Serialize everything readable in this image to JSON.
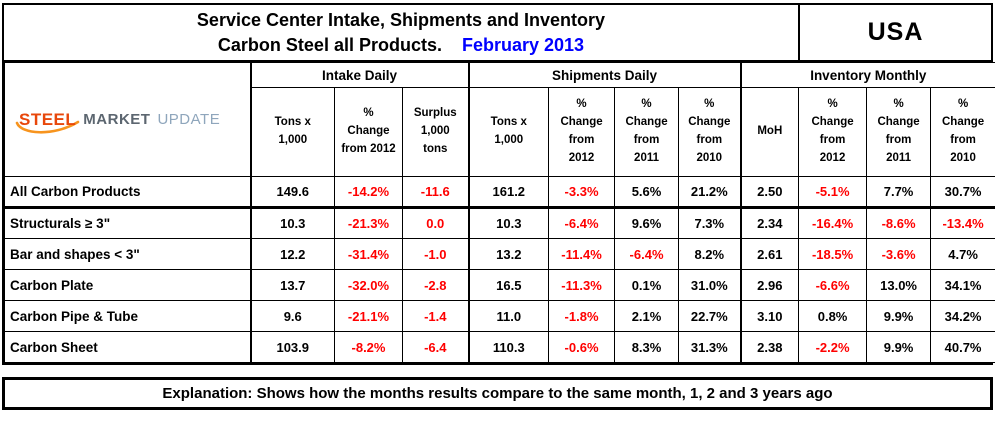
{
  "header": {
    "title_line1": "Service Center Intake, Shipments and Inventory",
    "title_line2": "Carbon Steel all Products.",
    "title_date": "February 2013",
    "region": "USA"
  },
  "logo": {
    "steel": "STEEL",
    "market": "MARKET",
    "update": "UPDATE",
    "swoosh_icon": "orange-swoosh"
  },
  "table": {
    "groups": [
      "Intake Daily",
      "Shipments Daily",
      "Inventory Monthly"
    ],
    "columns": [
      "Tons x\n1,000",
      "%\nChange\nfrom 2012",
      "Surplus\n1,000\ntons",
      "Tons x\n1,000",
      "%\nChange\nfrom\n2012",
      "%\nChange\nfrom\n2011",
      "%\nChange\nfrom\n2010",
      "MoH",
      "%\nChange\nfrom\n2012",
      "%\nChange\nfrom\n2011",
      "%\nChange\nfrom\n2010"
    ],
    "rows": [
      {
        "label": "All Carbon Products",
        "thick_bottom": true,
        "cells": [
          [
            "149.6",
            0
          ],
          [
            "-14.2%",
            1
          ],
          [
            "-11.6",
            1
          ],
          [
            "161.2",
            0
          ],
          [
            "-3.3%",
            1
          ],
          [
            "5.6%",
            0
          ],
          [
            "21.2%",
            0
          ],
          [
            "2.50",
            0
          ],
          [
            "-5.1%",
            1
          ],
          [
            "7.7%",
            0
          ],
          [
            "30.7%",
            0
          ]
        ]
      },
      {
        "label": "Structurals ≥ 3\"",
        "thick_bottom": false,
        "cells": [
          [
            "10.3",
            0
          ],
          [
            "-21.3%",
            1
          ],
          [
            "0.0",
            1
          ],
          [
            "10.3",
            0
          ],
          [
            "-6.4%",
            1
          ],
          [
            "9.6%",
            0
          ],
          [
            "7.3%",
            0
          ],
          [
            "2.34",
            0
          ],
          [
            "-16.4%",
            1
          ],
          [
            "-8.6%",
            1
          ],
          [
            "-13.4%",
            1
          ]
        ]
      },
      {
        "label": "Bar and shapes < 3\"",
        "thick_bottom": false,
        "cells": [
          [
            "12.2",
            0
          ],
          [
            "-31.4%",
            1
          ],
          [
            "-1.0",
            1
          ],
          [
            "13.2",
            0
          ],
          [
            "-11.4%",
            1
          ],
          [
            "-6.4%",
            1
          ],
          [
            "8.2%",
            0
          ],
          [
            "2.61",
            0
          ],
          [
            "-18.5%",
            1
          ],
          [
            "-3.6%",
            1
          ],
          [
            "4.7%",
            0
          ]
        ]
      },
      {
        "label": "Carbon Plate",
        "thick_bottom": false,
        "cells": [
          [
            "13.7",
            0
          ],
          [
            "-32.0%",
            1
          ],
          [
            "-2.8",
            1
          ],
          [
            "16.5",
            0
          ],
          [
            "-11.3%",
            1
          ],
          [
            "0.1%",
            0
          ],
          [
            "31.0%",
            0
          ],
          [
            "2.96",
            0
          ],
          [
            "-6.6%",
            1
          ],
          [
            "13.0%",
            0
          ],
          [
            "34.1%",
            0
          ]
        ]
      },
      {
        "label": "Carbon Pipe & Tube",
        "thick_bottom": false,
        "cells": [
          [
            "9.6",
            0
          ],
          [
            "-21.1%",
            1
          ],
          [
            "-1.4",
            1
          ],
          [
            "11.0",
            0
          ],
          [
            "-1.8%",
            1
          ],
          [
            "2.1%",
            0
          ],
          [
            "22.7%",
            0
          ],
          [
            "3.10",
            0
          ],
          [
            "0.8%",
            0
          ],
          [
            "9.9%",
            0
          ],
          [
            "34.2%",
            0
          ]
        ]
      },
      {
        "label": "Carbon Sheet",
        "thick_bottom": false,
        "cells": [
          [
            "103.9",
            0
          ],
          [
            "-8.2%",
            1
          ],
          [
            "-6.4",
            1
          ],
          [
            "110.3",
            0
          ],
          [
            "-0.6%",
            1
          ],
          [
            "8.3%",
            0
          ],
          [
            "31.3%",
            0
          ],
          [
            "2.38",
            0
          ],
          [
            "-2.2%",
            1
          ],
          [
            "9.9%",
            0
          ],
          [
            "40.7%",
            0
          ]
        ]
      }
    ]
  },
  "footer": {
    "text": "Explanation: Shows how the months results compare to the same month, 1, 2 and 3 years ago"
  },
  "colors": {
    "negative": "#FF0000",
    "title_date_blue": "#0000FF",
    "logo_steel": "#E8470B",
    "logo_market": "#5C6670",
    "logo_update": "#8FA6BC",
    "logo_swoosh": "#F7941E"
  },
  "chart_data": {
    "type": "table",
    "title": "Service Center Intake, Shipments and Inventory - Carbon Steel all Products. February 2013",
    "region": "USA",
    "column_groups": [
      {
        "name": "Intake Daily",
        "columns": [
          "Tons x 1,000",
          "% Change from 2012",
          "Surplus 1,000 tons"
        ]
      },
      {
        "name": "Shipments Daily",
        "columns": [
          "Tons x 1,000",
          "% Change from 2012",
          "% Change from 2011",
          "% Change from 2010"
        ]
      },
      {
        "name": "Inventory Monthly",
        "columns": [
          "MoH",
          "% Change from 2012",
          "% Change from 2011",
          "% Change from 2010"
        ]
      }
    ],
    "rows": [
      {
        "product": "All Carbon Products",
        "intake": {
          "tons_x_1000": 149.6,
          "pct_change_from_2012": -14.2,
          "surplus_1000_tons": -11.6
        },
        "shipments": {
          "tons_x_1000": 161.2,
          "pct_change_from_2012": -3.3,
          "pct_change_from_2011": 5.6,
          "pct_change_from_2010": 21.2
        },
        "inventory": {
          "moh": 2.5,
          "pct_change_from_2012": -5.1,
          "pct_change_from_2011": 7.7,
          "pct_change_from_2010": 30.7
        }
      },
      {
        "product": "Structurals ≥ 3\"",
        "intake": {
          "tons_x_1000": 10.3,
          "pct_change_from_2012": -21.3,
          "surplus_1000_tons": 0.0
        },
        "shipments": {
          "tons_x_1000": 10.3,
          "pct_change_from_2012": -6.4,
          "pct_change_from_2011": 9.6,
          "pct_change_from_2010": 7.3
        },
        "inventory": {
          "moh": 2.34,
          "pct_change_from_2012": -16.4,
          "pct_change_from_2011": -8.6,
          "pct_change_from_2010": -13.4
        }
      },
      {
        "product": "Bar and shapes < 3\"",
        "intake": {
          "tons_x_1000": 12.2,
          "pct_change_from_2012": -31.4,
          "surplus_1000_tons": -1.0
        },
        "shipments": {
          "tons_x_1000": 13.2,
          "pct_change_from_2012": -11.4,
          "pct_change_from_2011": -6.4,
          "pct_change_from_2010": 8.2
        },
        "inventory": {
          "moh": 2.61,
          "pct_change_from_2012": -18.5,
          "pct_change_from_2011": -3.6,
          "pct_change_from_2010": 4.7
        }
      },
      {
        "product": "Carbon Plate",
        "intake": {
          "tons_x_1000": 13.7,
          "pct_change_from_2012": -32.0,
          "surplus_1000_tons": -2.8
        },
        "shipments": {
          "tons_x_1000": 16.5,
          "pct_change_from_2012": -11.3,
          "pct_change_from_2011": 0.1,
          "pct_change_from_2010": 31.0
        },
        "inventory": {
          "moh": 2.96,
          "pct_change_from_2012": -6.6,
          "pct_change_from_2011": 13.0,
          "pct_change_from_2010": 34.1
        }
      },
      {
        "product": "Carbon Pipe & Tube",
        "intake": {
          "tons_x_1000": 9.6,
          "pct_change_from_2012": -21.1,
          "surplus_1000_tons": -1.4
        },
        "shipments": {
          "tons_x_1000": 11.0,
          "pct_change_from_2012": -1.8,
          "pct_change_from_2011": 2.1,
          "pct_change_from_2010": 22.7
        },
        "inventory": {
          "moh": 3.1,
          "pct_change_from_2012": 0.8,
          "pct_change_from_2011": 9.9,
          "pct_change_from_2010": 34.2
        }
      },
      {
        "product": "Carbon Sheet",
        "intake": {
          "tons_x_1000": 103.9,
          "pct_change_from_2012": -8.2,
          "surplus_1000_tons": -6.4
        },
        "shipments": {
          "tons_x_1000": 110.3,
          "pct_change_from_2012": -0.6,
          "pct_change_from_2011": 8.3,
          "pct_change_from_2010": 31.3
        },
        "inventory": {
          "moh": 2.38,
          "pct_change_from_2012": -2.2,
          "pct_change_from_2011": 9.9,
          "pct_change_from_2010": 40.7
        }
      }
    ]
  }
}
